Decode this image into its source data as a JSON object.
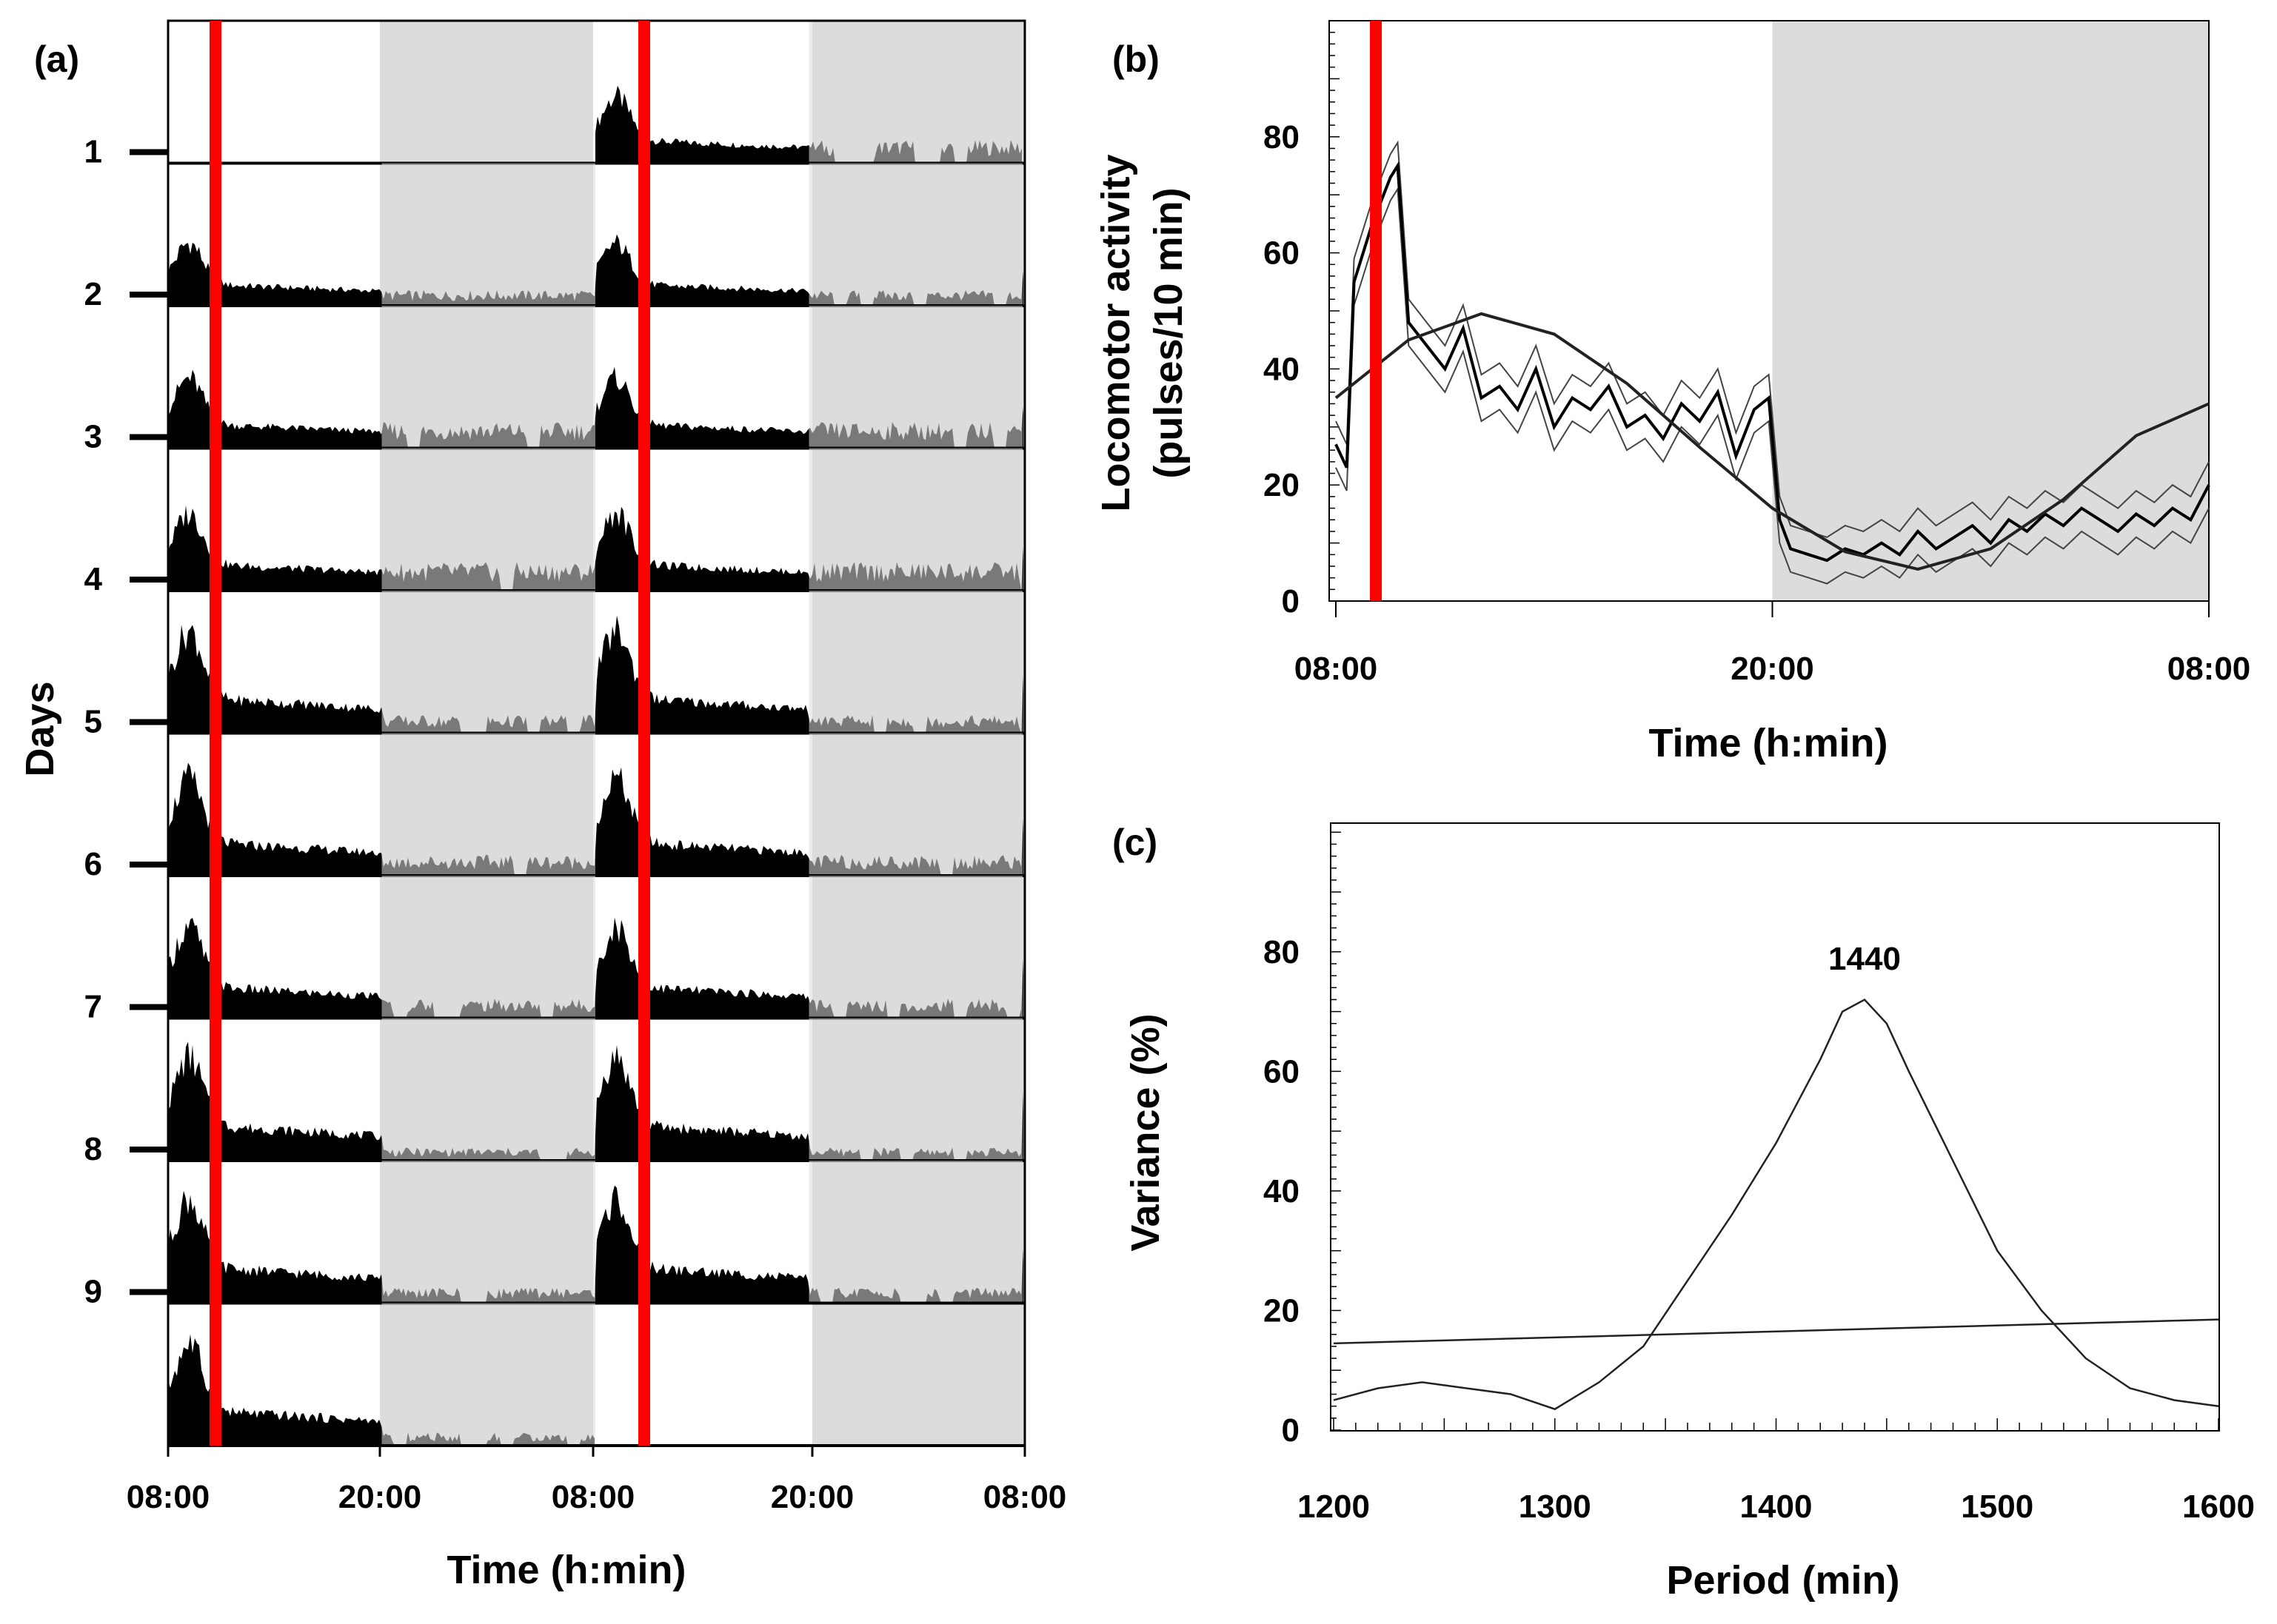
{
  "chart_data": [
    {
      "type": "actogram",
      "panel": "(a)",
      "ylabel": "Days",
      "xlabel": "Time (h:min)",
      "x_ticks": [
        "08:00",
        "20:00",
        "08:00",
        "20:00",
        "08:00"
      ],
      "day_labels": [
        "1",
        "2",
        "3",
        "4",
        "5",
        "6",
        "7",
        "8",
        "9"
      ],
      "light_dark": {
        "light": "08:00-20:00",
        "dark": "20:00-08:00"
      },
      "pulse_marker": "09:20",
      "row_peaks": [
        0.62,
        0.58,
        0.65,
        0.72,
        0.95,
        0.9,
        0.85,
        0.96,
        0.97,
        0.95
      ],
      "row_dark_levels": [
        0.18,
        0.12,
        0.2,
        0.22,
        0.14,
        0.16,
        0.15,
        0.1,
        0.12,
        0.1
      ]
    },
    {
      "type": "line",
      "panel": "(b)",
      "xlabel": "Time (h:min)",
      "ylabel": "Locomotor activity (pulses/10 min)",
      "x_ticks": [
        "08:00",
        "20:00",
        "08:00"
      ],
      "xlim": [
        0,
        24
      ],
      "ylim": [
        0,
        100
      ],
      "y_ticks": [
        0,
        20,
        40,
        60,
        80
      ],
      "dark_phase": [
        12,
        24
      ],
      "pulse_marker_hours": 1.1,
      "series": [
        {
          "name": "mean activity",
          "x": [
            0,
            0.3,
            0.5,
            1,
            1.5,
            1.7,
            2,
            2.5,
            3,
            3.5,
            4,
            4.5,
            5,
            5.5,
            6,
            6.5,
            7,
            7.5,
            8,
            8.5,
            9,
            9.5,
            10,
            10.5,
            11,
            11.5,
            11.9,
            12.2,
            12.5,
            13,
            13.5,
            14,
            14.5,
            15,
            15.5,
            16,
            16.5,
            17,
            17.5,
            18,
            18.5,
            19,
            19.5,
            20,
            20.5,
            21,
            21.5,
            22,
            22.5,
            23,
            23.5,
            24
          ],
          "y": [
            27,
            23,
            55,
            65,
            73,
            75,
            48,
            44,
            40,
            47,
            35,
            37,
            33,
            40,
            30,
            35,
            33,
            37,
            30,
            32,
            28,
            34,
            31,
            36,
            25,
            33,
            35,
            14,
            9,
            8,
            7,
            9,
            8,
            10,
            8,
            12,
            9,
            11,
            13,
            10,
            14,
            12,
            15,
            13,
            16,
            14,
            12,
            15,
            13,
            16,
            14,
            20
          ]
        },
        {
          "name": "cosinor fit",
          "x": [
            0,
            2,
            4,
            6,
            8,
            10,
            12,
            14,
            16,
            18,
            20,
            22,
            24
          ],
          "y": [
            35,
            45,
            49.5,
            46,
            37.5,
            26.5,
            16,
            8.5,
            5.5,
            9,
            17.5,
            28.5,
            34
          ]
        }
      ]
    },
    {
      "type": "line",
      "panel": "(c)",
      "xlabel": "Period (min)",
      "ylabel": "Variance (%)",
      "xlim": [
        1200,
        1600
      ],
      "ylim": [
        0,
        100
      ],
      "x_ticks": [
        1200,
        1300,
        1400,
        1500,
        1600
      ],
      "y_ticks": [
        0,
        20,
        40,
        60,
        80
      ],
      "peak_label": "1440",
      "series": [
        {
          "name": "periodogram",
          "x": [
            1200,
            1220,
            1240,
            1260,
            1280,
            1300,
            1320,
            1340,
            1360,
            1380,
            1400,
            1420,
            1430,
            1440,
            1450,
            1460,
            1480,
            1500,
            1520,
            1540,
            1560,
            1580,
            1600
          ],
          "y": [
            5,
            7,
            8,
            7,
            6,
            3.5,
            8,
            14,
            25,
            36,
            48,
            62,
            70,
            72,
            68,
            60,
            45,
            30,
            20,
            12,
            7,
            5,
            4
          ]
        },
        {
          "name": "significance threshold",
          "x": [
            1200,
            1600
          ],
          "y": [
            14.5,
            18.5
          ]
        }
      ]
    }
  ]
}
